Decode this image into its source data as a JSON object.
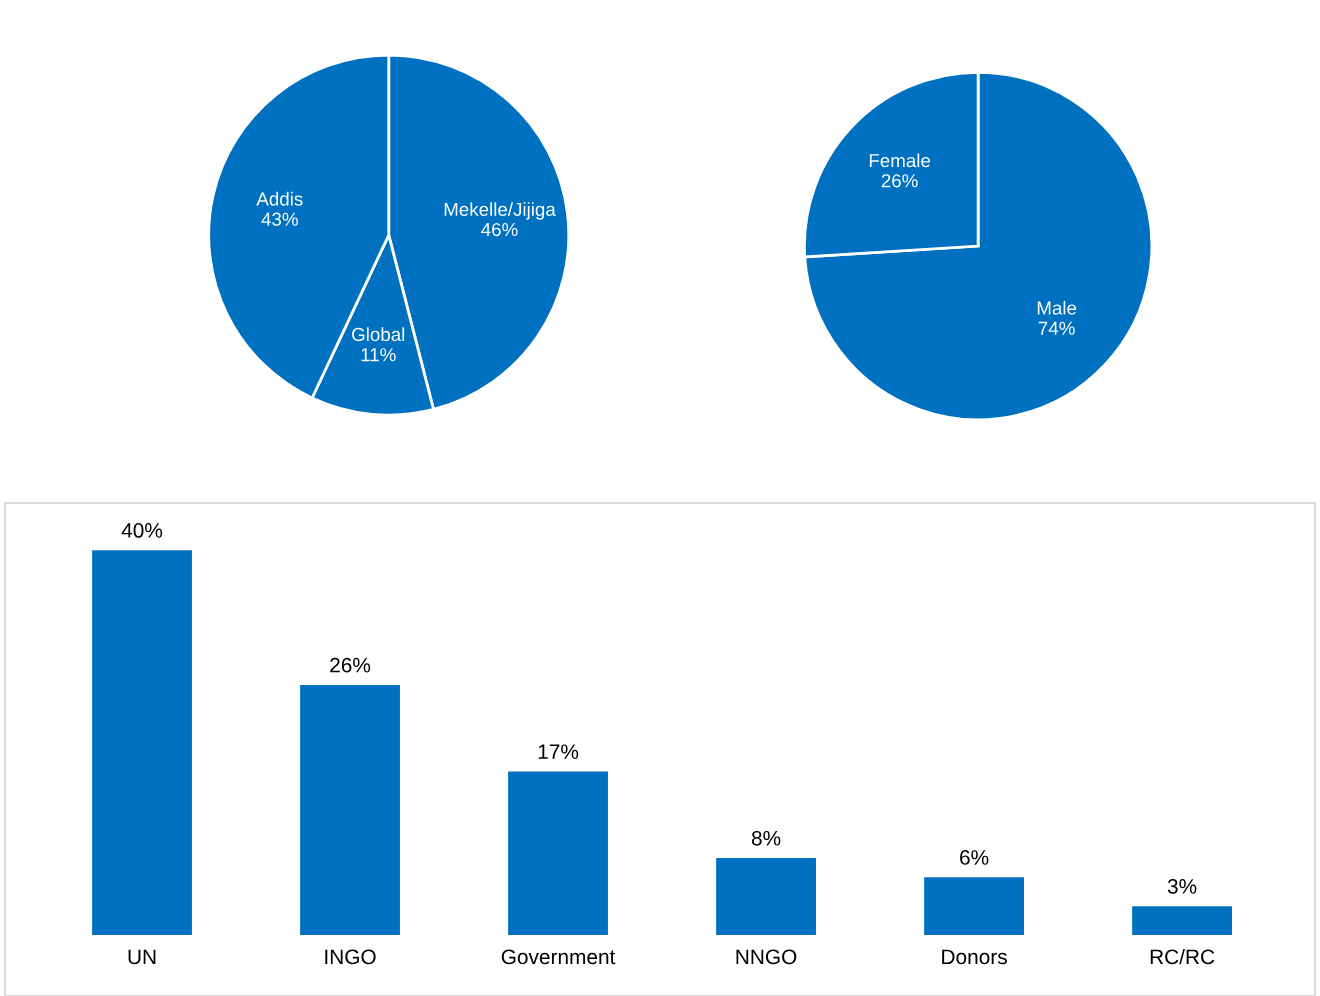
{
  "chart_data": [
    {
      "type": "pie",
      "categories": [
        "Mekelle/Jijiga",
        "Global",
        "Addis"
      ],
      "values": [
        46,
        11,
        43
      ],
      "colors": [
        "#0070c0",
        "#0070c0",
        "#0070c0"
      ],
      "value_labels": [
        "46%",
        "11%",
        "43%"
      ]
    },
    {
      "type": "pie",
      "categories": [
        "Male",
        "Female"
      ],
      "values": [
        74,
        26
      ],
      "colors": [
        "#0070c0",
        "#0070c0"
      ],
      "value_labels": [
        "74%",
        "26%"
      ]
    },
    {
      "type": "bar",
      "categories": [
        "UN",
        "INGO",
        "Government",
        "NNGO",
        "Donors",
        "RC/RC"
      ],
      "values": [
        40,
        26,
        17,
        8,
        6,
        3
      ],
      "color": "#0070c0",
      "data_labels": true,
      "value_labels": [
        "40%",
        "26%",
        "17%",
        "8%",
        "6%",
        "3%"
      ]
    }
  ]
}
